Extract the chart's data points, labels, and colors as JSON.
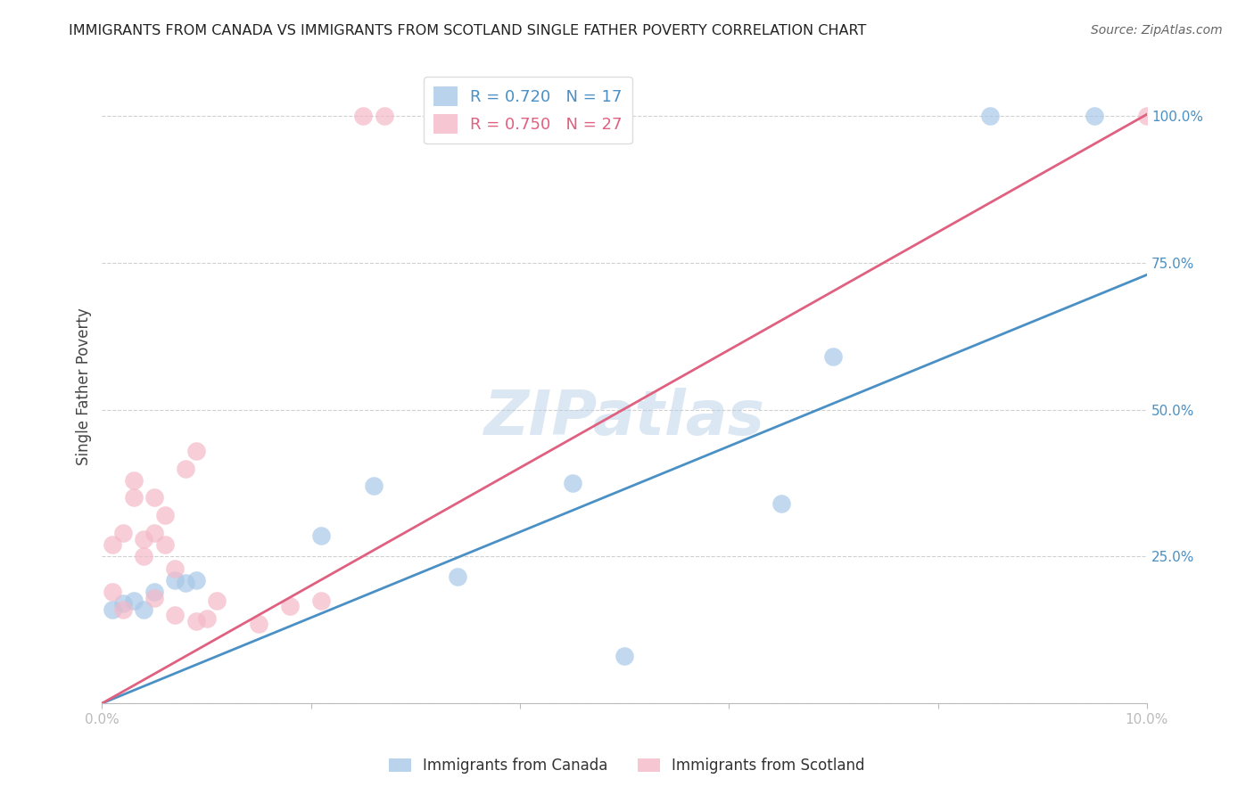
{
  "title": "IMMIGRANTS FROM CANADA VS IMMIGRANTS FROM SCOTLAND SINGLE FATHER POVERTY CORRELATION CHART",
  "source": "Source: ZipAtlas.com",
  "ylabel": "Single Father Poverty",
  "canada_R": 0.72,
  "canada_N": 17,
  "scotland_R": 0.75,
  "scotland_N": 27,
  "canada_color": "#a8c8e8",
  "scotland_color": "#f4b8c8",
  "canada_line_color": "#4a90c4",
  "scotland_line_color": "#e06080",
  "background_color": "#ffffff",
  "grid_color": "#d0d0d0",
  "watermark": "ZIPatlas",
  "canada_x": [
    0.001,
    0.002,
    0.003,
    0.004,
    0.005,
    0.007,
    0.008,
    0.009,
    0.021,
    0.026,
    0.034,
    0.045,
    0.05,
    0.065,
    0.07,
    0.085,
    0.095
  ],
  "canada_y": [
    0.16,
    0.17,
    0.175,
    0.16,
    0.19,
    0.21,
    0.205,
    0.21,
    0.285,
    0.37,
    0.215,
    0.375,
    0.08,
    0.34,
    0.59,
    1.0,
    1.0
  ],
  "scotland_x": [
    0.001,
    0.001,
    0.002,
    0.002,
    0.003,
    0.003,
    0.004,
    0.004,
    0.005,
    0.005,
    0.005,
    0.006,
    0.006,
    0.007,
    0.007,
    0.008,
    0.009,
    0.009,
    0.01,
    0.011,
    0.015,
    0.018,
    0.021,
    0.025,
    0.027,
    0.04,
    0.1
  ],
  "scotland_y": [
    0.19,
    0.27,
    0.16,
    0.29,
    0.35,
    0.38,
    0.25,
    0.28,
    0.18,
    0.29,
    0.35,
    0.27,
    0.32,
    0.15,
    0.23,
    0.4,
    0.43,
    0.14,
    0.145,
    0.175,
    0.135,
    0.165,
    0.175,
    1.0,
    1.0,
    1.0,
    1.0
  ],
  "xlim": [
    0.0,
    0.1
  ],
  "ylim": [
    0.0,
    1.08
  ],
  "yticks": [
    0.0,
    0.25,
    0.5,
    0.75,
    1.0
  ],
  "ytick_labels": [
    "",
    "25.0%",
    "50.0%",
    "75.0%",
    "100.0%"
  ],
  "xticks": [
    0.0,
    0.02,
    0.04,
    0.06,
    0.08,
    0.1
  ],
  "xtick_labels": [
    "0.0%",
    "",
    "",
    "",
    "",
    "10.0%"
  ]
}
